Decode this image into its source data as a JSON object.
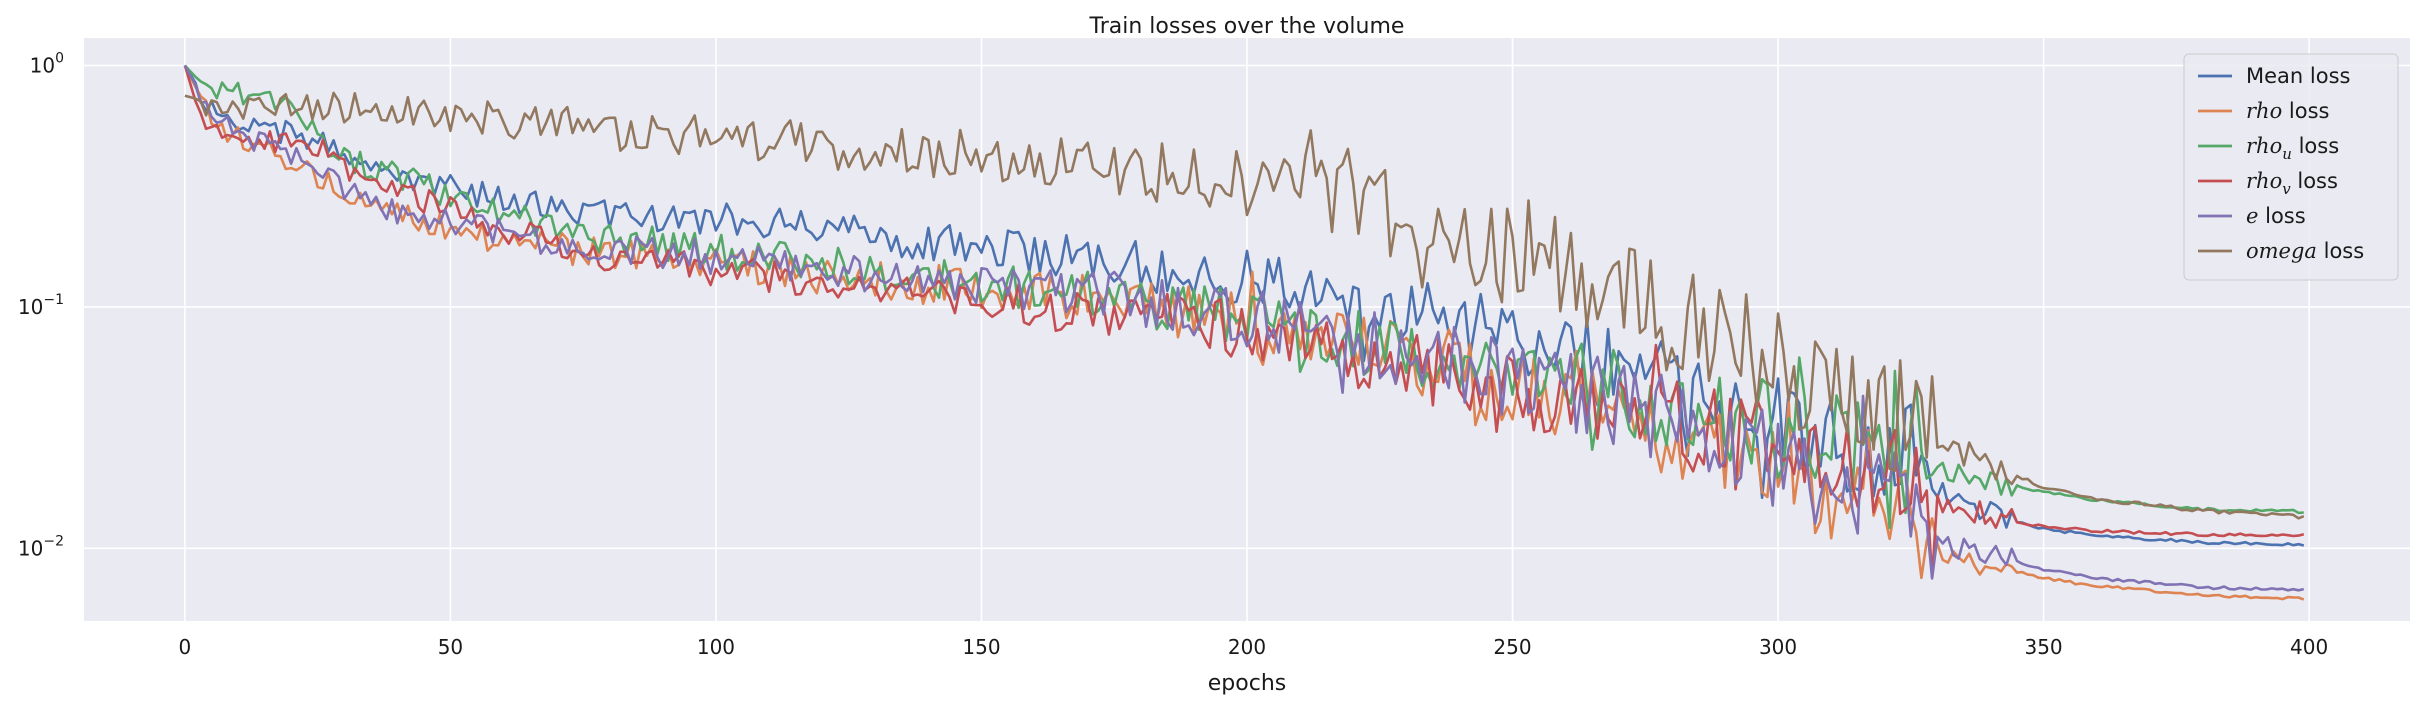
{
  "chart_data": {
    "type": "line",
    "title": "Train losses over the volume",
    "xlabel": "epochs",
    "ylabel": "",
    "yscale": "log",
    "xlim": [
      -19,
      419
    ],
    "ylim": [
      0.005,
      1.3
    ],
    "grid": true,
    "legend_placement": "top-right",
    "background": "#eaeaf2",
    "x_ticks": [
      0,
      50,
      100,
      150,
      200,
      250,
      300,
      350,
      400
    ],
    "x_tick_labels": [
      "0",
      "50",
      "100",
      "150",
      "200",
      "250",
      "300",
      "350",
      "400"
    ],
    "y_ticks": [
      1,
      0.1,
      0.01
    ],
    "y_tick_labels": [
      {
        "base": "10",
        "exp": "0"
      },
      {
        "base": "10",
        "exp": "−1"
      },
      {
        "base": "10",
        "exp": "−2"
      }
    ],
    "series": [
      {
        "name": "Mean loss",
        "legend_parts": [
          {
            "t": "Mean loss",
            "it": false
          }
        ],
        "color": "#4c72b0",
        "x": [
          0,
          5,
          10,
          15,
          20,
          25,
          30,
          40,
          50,
          60,
          75,
          100,
          125,
          150,
          175,
          200,
          225,
          250,
          270,
          290,
          310,
          325,
          330,
          340,
          350,
          360,
          380,
          399
        ],
        "y": [
          1.0,
          0.66,
          0.58,
          0.55,
          0.52,
          0.48,
          0.42,
          0.35,
          0.31,
          0.28,
          0.25,
          0.23,
          0.2,
          0.18,
          0.155,
          0.13,
          0.1,
          0.075,
          0.055,
          0.04,
          0.028,
          0.025,
          0.017,
          0.014,
          0.012,
          0.0113,
          0.0106,
          0.0104
        ]
      },
      {
        "name": "rho loss",
        "legend_parts": [
          {
            "t": "rho",
            "it": true
          },
          {
            "t": " loss",
            "it": false
          }
        ],
        "color": "#dd8452",
        "x": [
          0,
          5,
          10,
          15,
          20,
          25,
          30,
          40,
          50,
          60,
          75,
          100,
          125,
          150,
          175,
          200,
          225,
          250,
          270,
          290,
          310,
          325,
          330,
          340,
          350,
          360,
          380,
          399
        ],
        "y": [
          1.0,
          0.6,
          0.5,
          0.45,
          0.4,
          0.35,
          0.28,
          0.24,
          0.21,
          0.19,
          0.17,
          0.15,
          0.13,
          0.12,
          0.105,
          0.085,
          0.065,
          0.045,
          0.035,
          0.025,
          0.017,
          0.014,
          0.0095,
          0.0085,
          0.0075,
          0.007,
          0.0064,
          0.0062
        ]
      },
      {
        "name": "rho_u loss",
        "legend_parts": [
          {
            "t": "rho",
            "it": true
          },
          {
            "t": "u",
            "it": true,
            "sub": true
          },
          {
            "t": " loss",
            "it": false
          }
        ],
        "color": "#55a868",
        "x": [
          0,
          3,
          5,
          10,
          15,
          20,
          24,
          27,
          30,
          40,
          50,
          60,
          75,
          100,
          125,
          150,
          175,
          200,
          225,
          250,
          270,
          290,
          310,
          325,
          330,
          340,
          350,
          360,
          380,
          399
        ],
        "y": [
          1.0,
          0.85,
          0.78,
          0.76,
          0.73,
          0.67,
          0.55,
          0.45,
          0.41,
          0.35,
          0.29,
          0.24,
          0.2,
          0.17,
          0.145,
          0.125,
          0.11,
          0.09,
          0.07,
          0.055,
          0.045,
          0.035,
          0.027,
          0.023,
          0.021,
          0.019,
          0.0172,
          0.0158,
          0.0145,
          0.0142
        ]
      },
      {
        "name": "rho_v loss",
        "legend_parts": [
          {
            "t": "rho",
            "it": true
          },
          {
            "t": "v",
            "it": true,
            "sub": true
          },
          {
            "t": " loss",
            "it": false
          }
        ],
        "color": "#c44e52",
        "x": [
          0,
          3,
          5,
          10,
          15,
          20,
          25,
          30,
          40,
          50,
          60,
          75,
          100,
          125,
          150,
          175,
          200,
          225,
          250,
          270,
          290,
          310,
          325,
          330,
          340,
          350,
          360,
          380,
          399
        ],
        "y": [
          1.0,
          0.6,
          0.55,
          0.5,
          0.48,
          0.47,
          0.46,
          0.38,
          0.3,
          0.26,
          0.21,
          0.17,
          0.14,
          0.12,
          0.105,
          0.095,
          0.08,
          0.06,
          0.045,
          0.038,
          0.03,
          0.022,
          0.018,
          0.016,
          0.0135,
          0.0123,
          0.0118,
          0.0114,
          0.0113
        ]
      },
      {
        "name": "e loss",
        "legend_parts": [
          {
            "t": "e",
            "it": true
          },
          {
            "t": " loss",
            "it": false
          }
        ],
        "color": "#8172b3",
        "x": [
          0,
          5,
          10,
          15,
          20,
          25,
          30,
          40,
          50,
          60,
          75,
          100,
          125,
          150,
          175,
          200,
          225,
          250,
          270,
          290,
          310,
          325,
          330,
          340,
          350,
          360,
          380,
          399
        ],
        "y": [
          1.0,
          0.63,
          0.52,
          0.47,
          0.42,
          0.37,
          0.3,
          0.25,
          0.22,
          0.2,
          0.18,
          0.16,
          0.14,
          0.125,
          0.11,
          0.09,
          0.07,
          0.05,
          0.04,
          0.028,
          0.019,
          0.016,
          0.0105,
          0.0095,
          0.0082,
          0.0075,
          0.0069,
          0.0067
        ]
      },
      {
        "name": "omega loss",
        "legend_parts": [
          {
            "t": "omega",
            "it": true
          },
          {
            "t": " loss",
            "it": false
          }
        ],
        "color": "#937860",
        "x": [
          0,
          5,
          10,
          20,
          30,
          40,
          50,
          60,
          75,
          100,
          125,
          150,
          175,
          200,
          210,
          225,
          240,
          250,
          270,
          290,
          300,
          310,
          320,
          330,
          340,
          350,
          360,
          380,
          399
        ],
        "y": [
          0.75,
          0.7,
          0.69,
          0.68,
          0.67,
          0.65,
          0.62,
          0.6,
          0.55,
          0.5,
          0.46,
          0.42,
          0.38,
          0.33,
          0.3,
          0.25,
          0.2,
          0.16,
          0.11,
          0.075,
          0.06,
          0.045,
          0.035,
          0.028,
          0.022,
          0.018,
          0.016,
          0.0143,
          0.0135
        ]
      }
    ]
  }
}
